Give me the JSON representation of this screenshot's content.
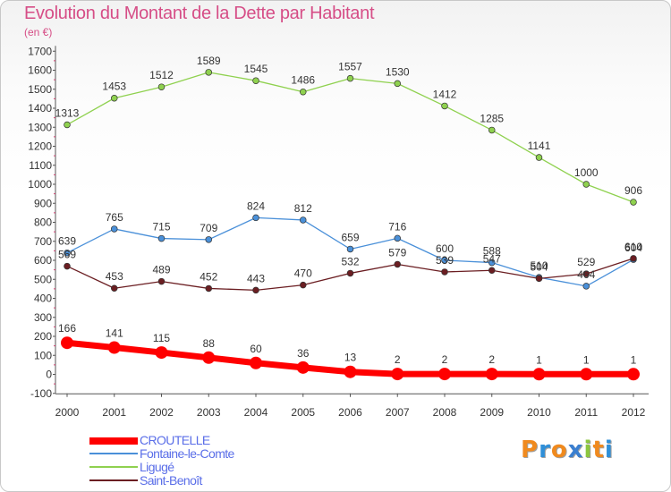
{
  "title": "Evolution du Montant de la Dette par Habitant",
  "subtitle": "(en €)",
  "logo": {
    "text": "Proxiti",
    "letters": [
      "P",
      "r",
      "o",
      "x",
      "i",
      "t",
      "i"
    ],
    "colors": [
      "#f08a1e",
      "#2f8fd8",
      "#f08a1e",
      "#3a7fd0",
      "#8cc63f",
      "#f08a1e",
      "#2f8fd8"
    ]
  },
  "chart_data": {
    "type": "line",
    "title": "Evolution du Montant de la Dette par Habitant",
    "ylabel": "(en €)",
    "x": [
      "2000",
      "2001",
      "2002",
      "2003",
      "2004",
      "2005",
      "2006",
      "2007",
      "2008",
      "2009",
      "2010",
      "2011",
      "2012"
    ],
    "ylim": [
      -100,
      1700
    ],
    "yticks": [
      -100,
      0,
      100,
      200,
      300,
      400,
      500,
      600,
      700,
      800,
      900,
      1000,
      1100,
      1200,
      1300,
      1400,
      1500,
      1600,
      1700
    ],
    "grid": false,
    "legend": "bottom-left",
    "series": [
      {
        "name": "CROUTELLE",
        "color": "#ff0000",
        "values": [
          166,
          141,
          115,
          88,
          60,
          36,
          13,
          2,
          2,
          2,
          1,
          1,
          1
        ],
        "labels": [
          "166",
          "141",
          "115",
          "88",
          "60",
          "36",
          "13",
          "2",
          "2",
          "2",
          "1",
          "1",
          "1"
        ]
      },
      {
        "name": "Fontaine-le-Comte",
        "color": "#4a90d9",
        "values": [
          639,
          765,
          715,
          709,
          824,
          812,
          659,
          716,
          600,
          588,
          510,
          464,
          604
        ],
        "labels": [
          "639",
          "765",
          "715",
          "709",
          "824",
          "812",
          "659",
          "716",
          "600",
          "588",
          "510",
          "464",
          "604"
        ]
      },
      {
        "name": "Liguge",
        "legend_label": "Ligugé",
        "color": "#8fd14f",
        "values": [
          1313,
          1453,
          1512,
          1589,
          1545,
          1486,
          1557,
          1530,
          1412,
          1285,
          1141,
          1000,
          906
        ],
        "labels": [
          "1313",
          "1453",
          "1512",
          "1589",
          "1545",
          "1486",
          "1557",
          "1530",
          "1412",
          "1285",
          "1141",
          "1000",
          "906"
        ]
      },
      {
        "name": "Saint-Benoît",
        "color": "#6b1e22",
        "values": [
          569,
          453,
          489,
          452,
          443,
          470,
          532,
          579,
          539,
          547,
          504,
          529,
          610
        ],
        "labels": [
          "569",
          "453",
          "489",
          "452",
          "443",
          "470",
          "532",
          "579",
          "539",
          "547",
          "504",
          "529",
          "610"
        ]
      }
    ]
  }
}
